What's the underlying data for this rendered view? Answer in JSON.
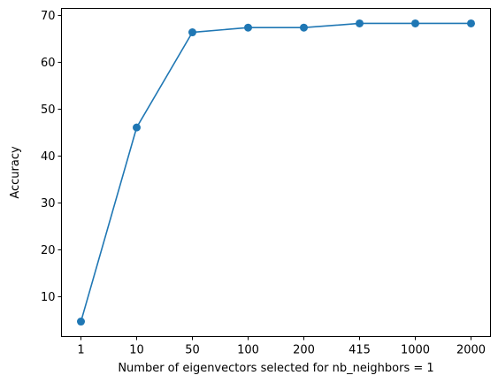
{
  "chart_data": {
    "type": "line",
    "title": "",
    "xlabel": "Number of eigenvectors selected for nb_neighbors = 1",
    "ylabel": "Accuracy",
    "categories": [
      "1",
      "10",
      "50",
      "100",
      "200",
      "415",
      "1000",
      "2000"
    ],
    "series": [
      {
        "name": "Accuracy",
        "values": [
          4.7,
          46.1,
          66.4,
          67.4,
          67.4,
          68.3,
          68.3,
          68.3
        ]
      }
    ],
    "ylim": [
      1.5,
      71.5
    ],
    "yticks": [
      10,
      20,
      30,
      40,
      50,
      60,
      70
    ],
    "grid": false,
    "color": "#1f77b4"
  }
}
